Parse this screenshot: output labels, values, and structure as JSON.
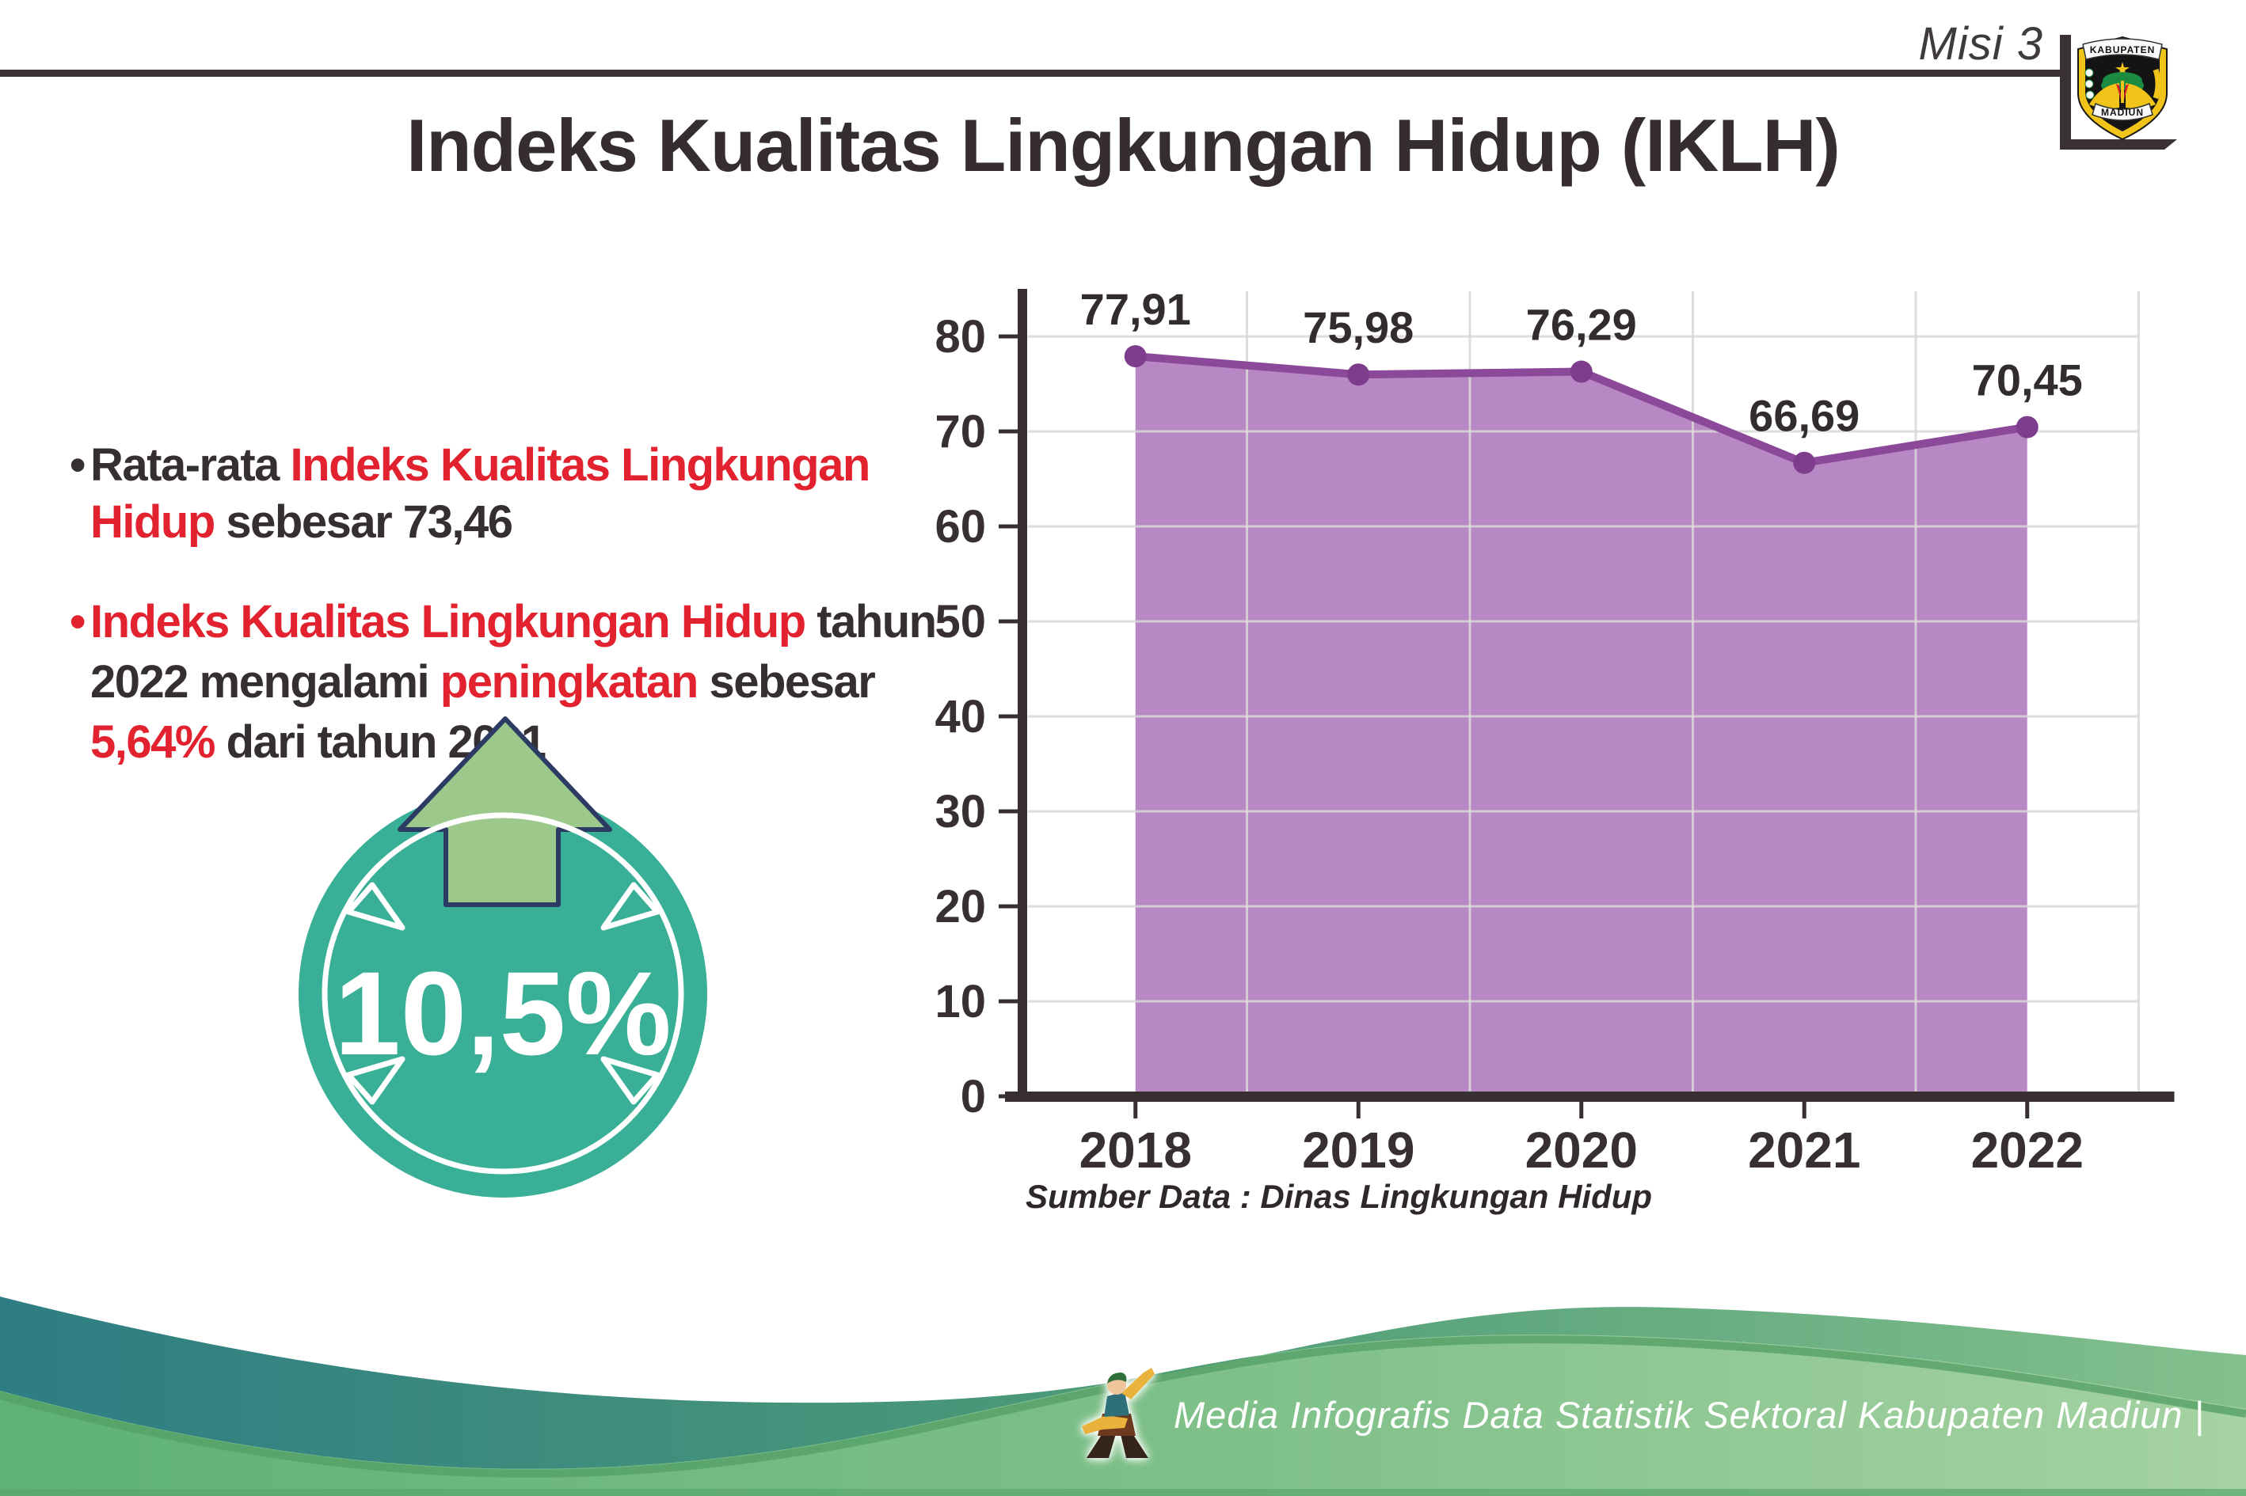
{
  "header": {
    "misi_label": "Misi 3",
    "title": "Indeks Kualitas Lingkungan Hidup (IKLH)",
    "logo": {
      "top_text": "KABUPATEN",
      "bottom_text": "MADIUN"
    }
  },
  "bullets": {
    "item1": {
      "seg1": "Rata-rata ",
      "seg2": "Indeks Kualitas Lingkungan Hidup",
      "seg3": " sebesar 73,46"
    },
    "item2": {
      "seg1": "Indeks Kualitas Lingkungan Hidup",
      "seg2": " tahun 2022 mengalami ",
      "seg3": "peningkatan",
      "seg4": " sebesar ",
      "seg5": "5,64%",
      "seg6": " dari tahun 2021"
    }
  },
  "badge": {
    "value_label": "10,5%"
  },
  "chart_data": {
    "type": "area",
    "categories": [
      "2018",
      "2019",
      "2020",
      "2021",
      "2022"
    ],
    "values": [
      77.91,
      75.98,
      76.29,
      66.69,
      70.45
    ],
    "value_labels": [
      "77,91",
      "75,98",
      "76,29",
      "66,69",
      "70,45"
    ],
    "ylim": [
      0,
      80
    ],
    "ytick_interval": 10,
    "grid": true,
    "legend": false,
    "source_note": "Sumber Data : Dinas Lingkungan Hidup",
    "colors": {
      "area": "#B888C4",
      "line": "#8C4899",
      "dot": "#7E3D8C",
      "axis": "#382F32",
      "grid": "#D9D9D9",
      "label": "#332C2E"
    }
  },
  "footer": {
    "caption": "Media Infografis Data Statistik Sektoral Kabupaten Madiun |"
  },
  "colors": {
    "accent_red": "#E2222E",
    "text_dark": "#362F31",
    "badge_teal": "#38AF96",
    "arrow_green": "#9CC98B",
    "arrow_outline": "#2B3B63",
    "footer_teal": "#2E7D84",
    "footer_green": "#83C08D",
    "footer_light_green": "#9ED2A0"
  }
}
